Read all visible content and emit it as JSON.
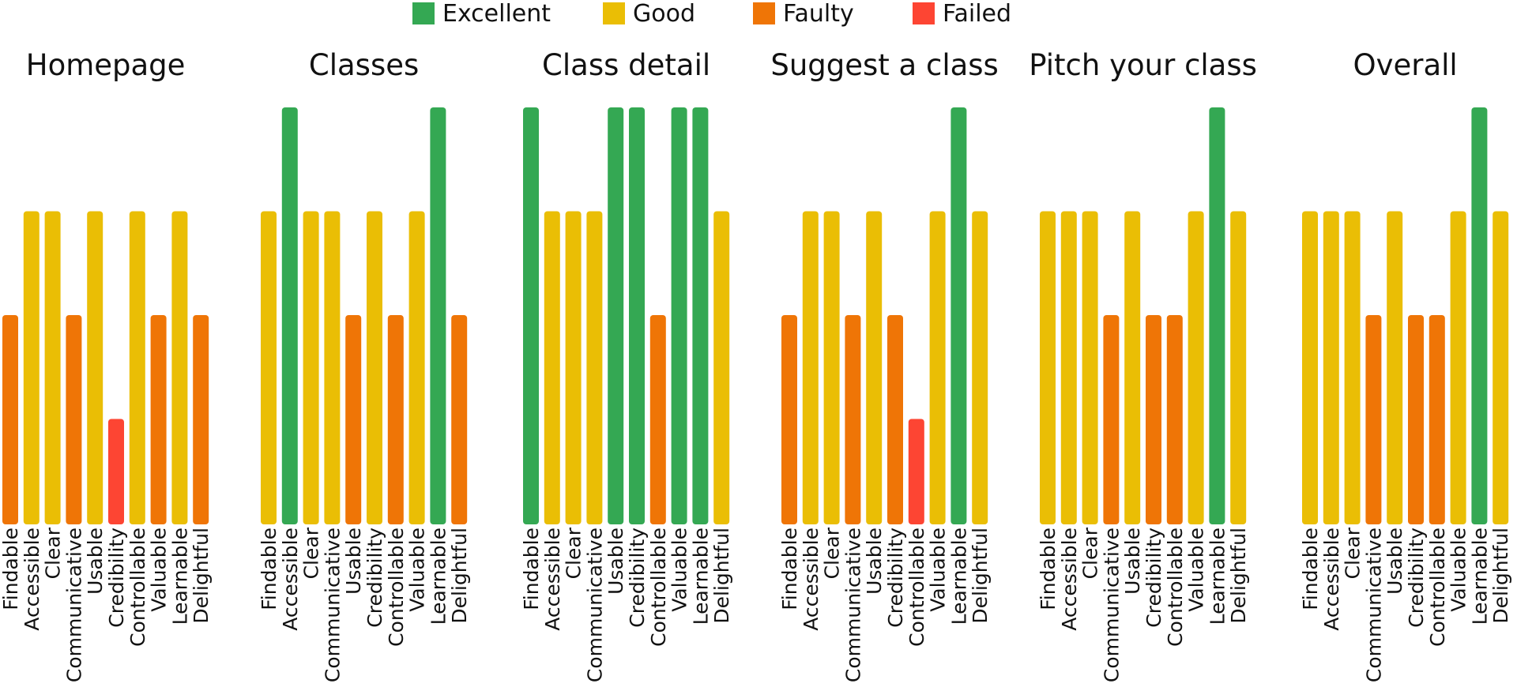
{
  "legend": [
    {
      "label": "Excellent",
      "color": "#34a853"
    },
    {
      "label": "Good",
      "color": "#eabe05"
    },
    {
      "label": "Faulty",
      "color": "#ef7506"
    },
    {
      "label": "Failed",
      "color": "#fd4533"
    }
  ],
  "chart_data": {
    "type": "bar",
    "level_scale": [
      "Failed",
      "Faulty",
      "Good",
      "Excellent"
    ],
    "level_values": {
      "Failed": 1,
      "Faulty": 2,
      "Good": 3,
      "Excellent": 4
    },
    "ylim": [
      0,
      4
    ],
    "grid": false,
    "legend_position": "top-center",
    "categories": [
      "Findable",
      "Accessible",
      "Clear",
      "Communicative",
      "Usable",
      "Credibility",
      "Controllable",
      "Valuable",
      "Learnable",
      "Delightful"
    ],
    "panels": [
      {
        "title": "Homepage",
        "values": [
          2,
          3,
          3,
          2,
          3,
          1,
          3,
          2,
          3,
          2
        ]
      },
      {
        "title": "Classes",
        "values": [
          3,
          4,
          3,
          3,
          2,
          3,
          2,
          3,
          4,
          2
        ]
      },
      {
        "title": "Class detail",
        "values": [
          4,
          3,
          3,
          3,
          4,
          4,
          2,
          4,
          4,
          3
        ]
      },
      {
        "title": "Suggest a class",
        "categories": [
          "Findable",
          "Accessible",
          "Clear",
          "Communicative",
          "Usable",
          "Credibility",
          "Controllable",
          "Valuable",
          "Learnable",
          "Delightful"
        ],
        "values": [
          2,
          3,
          3,
          2,
          3,
          2,
          1,
          3,
          4,
          3
        ]
      },
      {
        "title": "Pitch your class",
        "values": [
          3,
          3,
          3,
          2,
          3,
          2,
          2,
          3,
          4,
          3
        ]
      },
      {
        "title": "Overall",
        "values": [
          3,
          3,
          3,
          2,
          3,
          2,
          2,
          3,
          4,
          3
        ]
      }
    ]
  }
}
